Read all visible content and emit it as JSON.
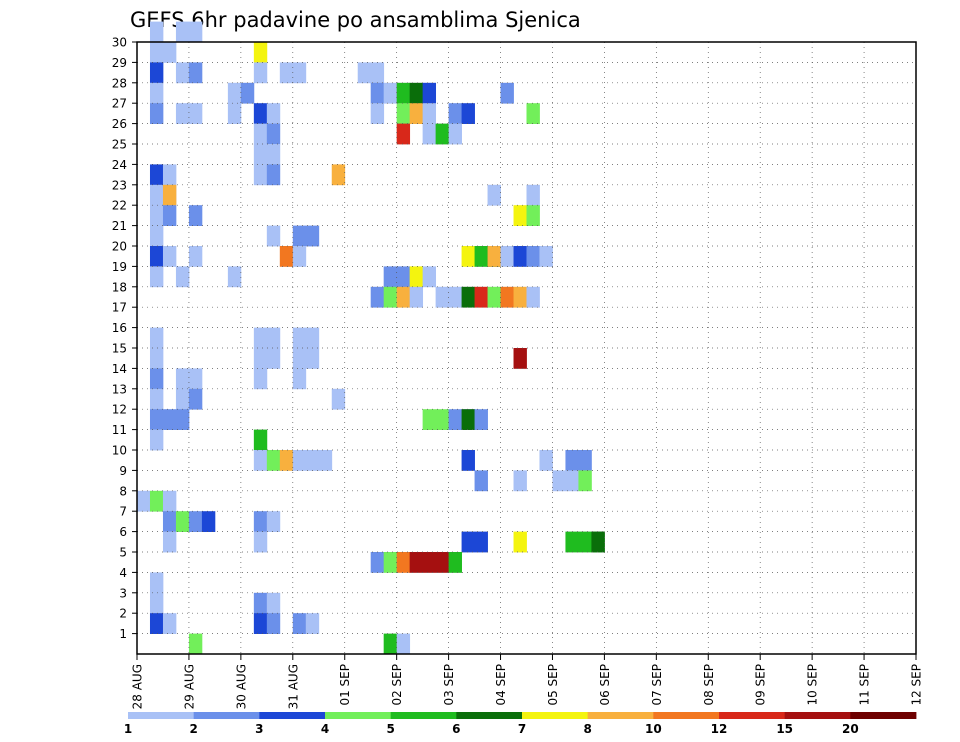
{
  "chart_data": {
    "type": "heatmap",
    "title": "GEFS 6hr padavine po ansamblima Sjenica",
    "xlabel": "",
    "ylabel": "",
    "x_tick_labels": [
      "28 AUG",
      "29 AUG",
      "30 AUG",
      "31 AUG",
      "01 SEP",
      "02 SEP",
      "03 SEP",
      "04 SEP",
      "05 SEP",
      "06 SEP",
      "07 SEP",
      "08 SEP",
      "09 SEP",
      "10 SEP",
      "11 SEP",
      "12 SEP"
    ],
    "y_tick_labels": [
      "1",
      "2",
      "3",
      "4",
      "5",
      "6",
      "7",
      "8",
      "9",
      "10",
      "11",
      "12",
      "13",
      "14",
      "15",
      "16",
      "17",
      "18",
      "19",
      "20",
      "21",
      "22",
      "23",
      "24",
      "25",
      "26",
      "27",
      "28",
      "29",
      "30"
    ],
    "y_range": [
      0,
      30
    ],
    "x_steps": 60,
    "grid": true,
    "colorbar": {
      "labels": [
        "1",
        "2",
        "3",
        "4",
        "5",
        "6",
        "7",
        "8",
        "10",
        "12",
        "15",
        "20"
      ],
      "colors": [
        "#a9c1f6",
        "#6b90ea",
        "#1c47d6",
        "#72ef5a",
        "#1fbc1f",
        "#0a6e0a",
        "#f4f40f",
        "#f8b03e",
        "#f27720",
        "#d8281a",
        "#a51010",
        "#6e0000"
      ]
    },
    "legend": "bottom colorbar",
    "cells": [
      [
        30,
        [
          [
            1,
            1,
            0
          ]
        ]
      ],
      [
        30,
        [
          [
            3,
            4,
            0
          ]
        ]
      ],
      [
        29,
        [
          [
            1,
            1,
            0
          ],
          [
            2,
            2,
            0
          ],
          [
            9,
            9,
            6
          ]
        ]
      ],
      [
        28,
        [
          [
            1,
            1,
            2
          ],
          [
            3,
            3,
            0
          ],
          [
            4,
            4,
            1
          ],
          [
            9,
            9,
            0
          ],
          [
            11,
            12,
            0
          ],
          [
            17,
            18,
            0
          ]
        ]
      ],
      [
        27,
        [
          [
            1,
            1,
            0
          ],
          [
            7,
            7,
            0
          ],
          [
            8,
            8,
            1
          ],
          [
            18,
            18,
            1
          ],
          [
            19,
            19,
            0
          ],
          [
            20,
            20,
            4
          ],
          [
            21,
            21,
            5
          ],
          [
            22,
            22,
            2
          ],
          [
            28,
            28,
            1
          ]
        ]
      ],
      [
        26,
        [
          [
            1,
            1,
            1
          ],
          [
            3,
            4,
            0
          ],
          [
            7,
            7,
            0
          ],
          [
            9,
            9,
            2
          ],
          [
            10,
            10,
            0
          ],
          [
            18,
            18,
            0
          ],
          [
            20,
            20,
            3
          ],
          [
            21,
            21,
            7
          ],
          [
            22,
            22,
            0
          ],
          [
            24,
            24,
            1
          ],
          [
            25,
            25,
            2
          ],
          [
            30,
            30,
            3
          ]
        ]
      ],
      [
        25,
        [
          [
            9,
            9,
            0
          ],
          [
            10,
            10,
            1
          ],
          [
            20,
            20,
            9
          ],
          [
            22,
            22,
            0
          ],
          [
            23,
            23,
            4
          ],
          [
            24,
            24,
            0
          ]
        ]
      ],
      [
        24,
        [
          [
            9,
            9,
            0
          ],
          [
            10,
            10,
            0
          ]
        ]
      ],
      [
        23,
        [
          [
            1,
            1,
            2
          ],
          [
            2,
            2,
            0
          ],
          [
            9,
            9,
            0
          ],
          [
            10,
            10,
            1
          ],
          [
            15,
            15,
            7
          ]
        ]
      ],
      [
        22,
        [
          [
            1,
            2,
            0
          ],
          [
            2,
            2,
            7
          ],
          [
            27,
            27,
            0
          ],
          [
            30,
            30,
            0
          ]
        ]
      ],
      [
        21,
        [
          [
            1,
            1,
            0
          ],
          [
            2,
            2,
            1
          ],
          [
            4,
            4,
            1
          ],
          [
            29,
            29,
            6
          ],
          [
            30,
            30,
            3
          ]
        ]
      ],
      [
        20,
        [
          [
            1,
            1,
            0
          ],
          [
            10,
            10,
            0
          ],
          [
            12,
            13,
            1
          ]
        ]
      ],
      [
        19,
        [
          [
            1,
            1,
            2
          ],
          [
            2,
            2,
            0
          ],
          [
            4,
            4,
            0
          ],
          [
            11,
            11,
            8
          ],
          [
            12,
            12,
            0
          ],
          [
            25,
            25,
            6
          ],
          [
            26,
            26,
            4
          ],
          [
            27,
            27,
            5
          ],
          [
            27,
            27,
            7
          ],
          [
            28,
            28,
            0
          ],
          [
            29,
            29,
            2
          ],
          [
            30,
            30,
            1
          ],
          [
            31,
            31,
            0
          ]
        ]
      ],
      [
        18,
        [
          [
            1,
            1,
            0
          ],
          [
            3,
            3,
            0
          ],
          [
            7,
            7,
            0
          ],
          [
            19,
            20,
            1
          ],
          [
            21,
            21,
            6
          ],
          [
            22,
            22,
            0
          ]
        ]
      ],
      [
        17,
        [
          [
            18,
            18,
            1
          ],
          [
            19,
            19,
            3
          ],
          [
            20,
            20,
            7
          ],
          [
            21,
            21,
            0
          ],
          [
            23,
            24,
            0
          ],
          [
            25,
            25,
            5
          ],
          [
            26,
            26,
            9
          ],
          [
            27,
            27,
            3
          ],
          [
            28,
            28,
            8
          ],
          [
            29,
            29,
            7
          ],
          [
            30,
            30,
            0
          ]
        ]
      ],
      [
        15,
        [
          [
            1,
            1,
            0
          ],
          [
            9,
            10,
            0
          ],
          [
            12,
            13,
            0
          ]
        ]
      ],
      [
        14,
        [
          [
            1,
            1,
            0
          ],
          [
            9,
            10,
            0
          ],
          [
            12,
            13,
            0
          ],
          [
            29,
            29,
            10
          ]
        ]
      ],
      [
        13,
        [
          [
            1,
            1,
            1
          ],
          [
            3,
            4,
            0
          ],
          [
            9,
            9,
            0
          ],
          [
            12,
            12,
            0
          ]
        ]
      ],
      [
        12,
        [
          [
            1,
            1,
            0
          ],
          [
            3,
            3,
            0
          ],
          [
            4,
            4,
            1
          ],
          [
            15,
            15,
            0
          ]
        ]
      ],
      [
        11,
        [
          [
            1,
            2,
            1
          ],
          [
            3,
            3,
            1
          ],
          [
            22,
            23,
            3
          ],
          [
            24,
            25,
            1
          ],
          [
            25,
            25,
            5
          ],
          [
            26,
            26,
            1
          ]
        ]
      ],
      [
        10,
        [
          [
            1,
            1,
            0
          ],
          [
            9,
            9,
            4
          ]
        ]
      ],
      [
        9,
        [
          [
            9,
            9,
            0
          ],
          [
            10,
            10,
            3
          ],
          [
            11,
            11,
            7
          ],
          [
            12,
            13,
            0
          ],
          [
            14,
            14,
            0
          ],
          [
            25,
            25,
            2
          ],
          [
            31,
            31,
            0
          ],
          [
            33,
            34,
            1
          ]
        ]
      ],
      [
        8,
        [
          [
            26,
            26,
            1
          ],
          [
            29,
            29,
            0
          ],
          [
            32,
            33,
            0
          ],
          [
            34,
            34,
            3
          ]
        ]
      ],
      [
        7,
        [
          [
            0,
            0,
            0
          ],
          [
            1,
            1,
            3
          ],
          [
            2,
            2,
            0
          ]
        ]
      ],
      [
        6,
        [
          [
            2,
            2,
            1
          ],
          [
            3,
            3,
            3
          ],
          [
            4,
            4,
            1
          ],
          [
            5,
            5,
            2
          ],
          [
            9,
            9,
            1
          ],
          [
            10,
            10,
            0
          ]
        ]
      ],
      [
        5,
        [
          [
            2,
            2,
            0
          ],
          [
            9,
            9,
            0
          ],
          [
            25,
            26,
            2
          ],
          [
            29,
            29,
            6
          ],
          [
            33,
            35,
            4
          ],
          [
            35,
            35,
            5
          ]
        ]
      ],
      [
        4,
        [
          [
            18,
            18,
            1
          ],
          [
            19,
            19,
            3
          ],
          [
            20,
            20,
            8
          ],
          [
            21,
            23,
            10
          ],
          [
            24,
            24,
            4
          ]
        ]
      ],
      [
        3,
        [
          [
            1,
            1,
            0
          ]
        ]
      ],
      [
        2,
        [
          [
            1,
            1,
            0
          ],
          [
            9,
            9,
            1
          ],
          [
            10,
            10,
            0
          ]
        ]
      ],
      [
        1,
        [
          [
            1,
            1,
            2
          ],
          [
            2,
            2,
            0
          ],
          [
            9,
            9,
            2
          ],
          [
            10,
            10,
            1
          ],
          [
            12,
            12,
            1
          ],
          [
            13,
            13,
            0
          ]
        ]
      ],
      [
        0,
        [
          [
            4,
            4,
            3
          ],
          [
            19,
            19,
            4
          ],
          [
            20,
            20,
            0
          ]
        ]
      ]
    ]
  }
}
